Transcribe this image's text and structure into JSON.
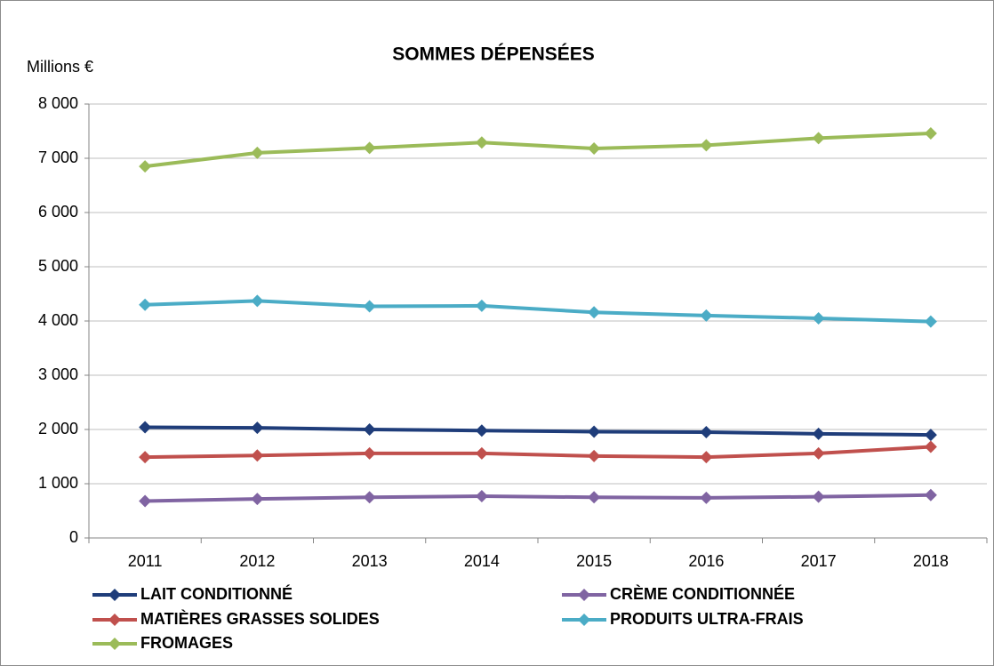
{
  "chart_data": {
    "type": "line",
    "title": "SOMMES DÉPENSÉES",
    "y_label": "Millions €",
    "categories": [
      "2011",
      "2012",
      "2013",
      "2014",
      "2015",
      "2016",
      "2017",
      "2018"
    ],
    "series": [
      {
        "name": "LAIT CONDITIONNÉ",
        "color": "#1f3d7a",
        "values": [
          2040,
          2030,
          2000,
          1980,
          1960,
          1950,
          1920,
          1900
        ]
      },
      {
        "name": "CRÈME CONDITIONNÉE",
        "color": "#8064a2",
        "values": [
          680,
          720,
          750,
          770,
          750,
          740,
          760,
          790
        ]
      },
      {
        "name": "MATIÈRES GRASSES SOLIDES",
        "color": "#c0504d",
        "values": [
          1490,
          1520,
          1560,
          1560,
          1510,
          1490,
          1560,
          1680
        ]
      },
      {
        "name": "PRODUITS ULTRA-FRAIS",
        "color": "#4bacc6",
        "values": [
          4300,
          4370,
          4270,
          4280,
          4160,
          4100,
          4050,
          3990
        ]
      },
      {
        "name": "FROMAGES",
        "color": "#9bbb59",
        "values": [
          6850,
          7100,
          7190,
          7290,
          7180,
          7240,
          7370,
          7460
        ]
      }
    ],
    "ylim": [
      0,
      8000
    ],
    "yticks": [
      0,
      {
        "value": 1000,
        "label": "1 000"
      },
      {
        "value": 2000,
        "label": "2 000"
      },
      {
        "value": 3000,
        "label": "3 000"
      },
      {
        "value": 4000,
        "label": "4 000"
      },
      {
        "value": 5000,
        "label": "5 000"
      },
      {
        "value": 6000,
        "label": "6 000"
      },
      {
        "value": 7000,
        "label": "7 000"
      },
      {
        "value": 8000,
        "label": "8 000"
      }
    ],
    "grid": true
  }
}
